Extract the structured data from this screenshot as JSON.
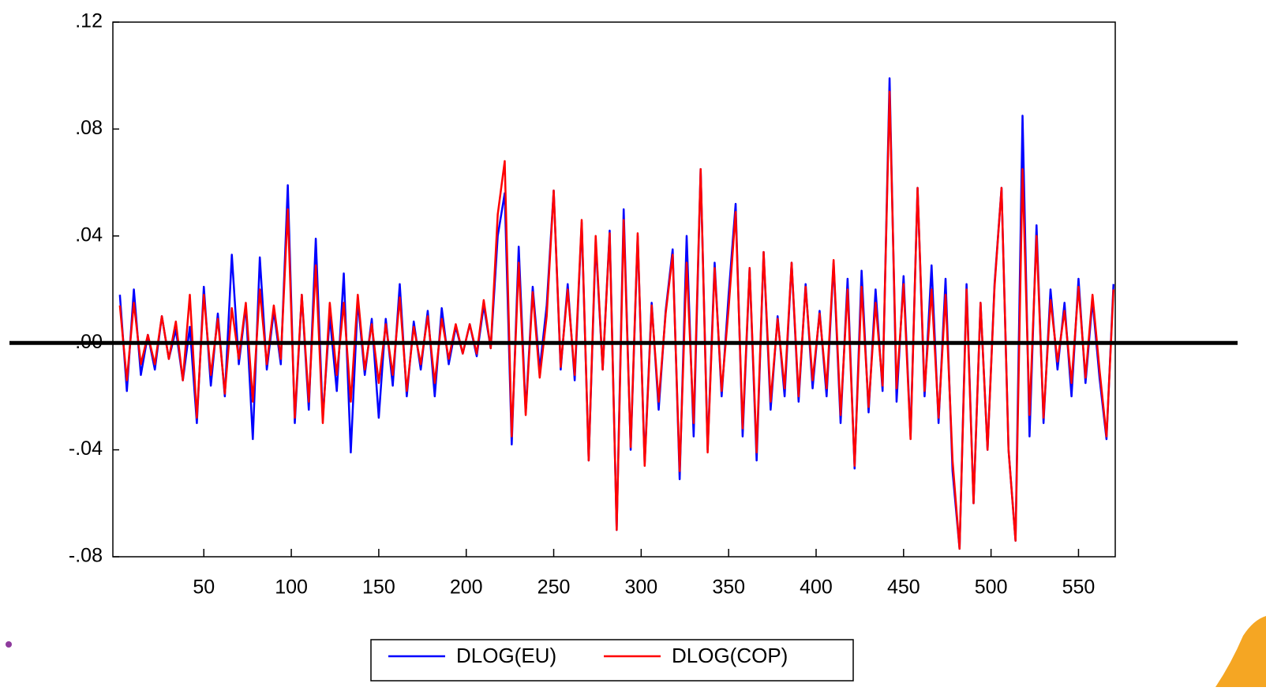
{
  "chart_data": {
    "type": "line",
    "x": [
      2,
      6,
      10,
      14,
      18,
      22,
      26,
      30,
      34,
      38,
      42,
      46,
      50,
      54,
      58,
      62,
      66,
      70,
      74,
      78,
      82,
      86,
      90,
      94,
      98,
      102,
      106,
      110,
      114,
      118,
      122,
      126,
      130,
      134,
      138,
      142,
      146,
      150,
      154,
      158,
      162,
      166,
      170,
      174,
      178,
      182,
      186,
      190,
      194,
      198,
      202,
      206,
      210,
      214,
      218,
      222,
      226,
      230,
      234,
      238,
      242,
      246,
      250,
      254,
      258,
      262,
      266,
      270,
      274,
      278,
      282,
      286,
      290,
      294,
      298,
      302,
      306,
      310,
      314,
      318,
      322,
      326,
      330,
      334,
      338,
      342,
      346,
      350,
      354,
      358,
      362,
      366,
      370,
      374,
      378,
      382,
      386,
      390,
      394,
      398,
      402,
      406,
      410,
      414,
      418,
      422,
      426,
      430,
      434,
      438,
      442,
      446,
      450,
      454,
      458,
      462,
      466,
      470,
      474,
      478,
      482,
      486,
      490,
      494,
      498,
      502,
      506,
      510,
      514,
      518,
      522,
      526,
      530,
      534,
      538,
      542,
      546,
      550,
      554,
      558,
      562,
      566,
      570
    ],
    "series": [
      {
        "name": "DLOG(EU)",
        "color": "#0000ff",
        "values": [
          0.018,
          -0.018,
          0.02,
          -0.012,
          0.003,
          -0.01,
          0.01,
          -0.006,
          0.005,
          -0.014,
          0.006,
          -0.03,
          0.021,
          -0.016,
          0.011,
          -0.02,
          0.033,
          -0.008,
          0.014,
          -0.036,
          0.032,
          -0.01,
          0.012,
          -0.008,
          0.059,
          -0.03,
          0.018,
          -0.025,
          0.039,
          -0.028,
          0.01,
          -0.018,
          0.026,
          -0.041,
          0.016,
          -0.012,
          0.009,
          -0.028,
          0.009,
          -0.016,
          0.022,
          -0.02,
          0.008,
          -0.01,
          0.012,
          -0.02,
          0.013,
          -0.008,
          0.006,
          -0.004,
          0.007,
          -0.005,
          0.014,
          -0.002,
          0.04,
          0.056,
          -0.038,
          0.036,
          -0.026,
          0.021,
          -0.01,
          0.014,
          0.057,
          -0.01,
          0.022,
          -0.014,
          0.045,
          -0.044,
          0.038,
          -0.01,
          0.042,
          -0.07,
          0.05,
          -0.04,
          0.04,
          -0.045,
          0.015,
          -0.025,
          0.012,
          0.035,
          -0.051,
          0.04,
          -0.035,
          0.065,
          -0.04,
          0.03,
          -0.02,
          0.018,
          0.052,
          -0.035,
          0.028,
          -0.044,
          0.034,
          -0.025,
          0.01,
          -0.02,
          0.03,
          -0.022,
          0.022,
          -0.017,
          0.012,
          -0.02,
          0.03,
          -0.03,
          0.024,
          -0.047,
          0.027,
          -0.026,
          0.02,
          -0.018,
          0.099,
          -0.022,
          0.025,
          -0.035,
          0.058,
          -0.02,
          0.029,
          -0.03,
          0.024,
          -0.048,
          -0.077,
          0.022,
          -0.06,
          0.015,
          -0.04,
          0.022,
          0.058,
          -0.04,
          -0.074,
          0.085,
          -0.035,
          0.044,
          -0.03,
          0.02,
          -0.01,
          0.015,
          -0.02,
          0.024,
          -0.015,
          0.016,
          -0.013,
          -0.036,
          0.022
        ]
      },
      {
        "name": "DLOG(COP)",
        "color": "#ff0000",
        "values": [
          0.014,
          -0.014,
          0.015,
          -0.008,
          0.003,
          -0.008,
          0.01,
          -0.006,
          0.008,
          -0.014,
          0.018,
          -0.028,
          0.018,
          -0.012,
          0.009,
          -0.019,
          0.013,
          -0.006,
          0.015,
          -0.022,
          0.02,
          -0.008,
          0.014,
          -0.006,
          0.05,
          -0.028,
          0.018,
          -0.022,
          0.029,
          -0.03,
          0.015,
          -0.012,
          0.015,
          -0.022,
          0.018,
          -0.01,
          0.007,
          -0.015,
          0.007,
          -0.012,
          0.017,
          -0.018,
          0.006,
          -0.008,
          0.01,
          -0.015,
          0.009,
          -0.006,
          0.007,
          -0.004,
          0.007,
          -0.004,
          0.016,
          -0.002,
          0.048,
          0.068,
          -0.035,
          0.03,
          -0.027,
          0.019,
          -0.013,
          0.01,
          0.057,
          -0.009,
          0.02,
          -0.012,
          0.046,
          -0.044,
          0.04,
          -0.01,
          0.041,
          -0.07,
          0.046,
          -0.039,
          0.041,
          -0.046,
          0.014,
          -0.022,
          0.011,
          0.033,
          -0.048,
          0.03,
          -0.03,
          0.065,
          -0.041,
          0.028,
          -0.018,
          0.013,
          0.049,
          -0.032,
          0.028,
          -0.041,
          0.034,
          -0.022,
          0.009,
          -0.017,
          0.03,
          -0.02,
          0.021,
          -0.014,
          0.011,
          -0.017,
          0.031,
          -0.027,
          0.02,
          -0.046,
          0.021,
          -0.024,
          0.015,
          -0.016,
          0.094,
          -0.017,
          0.022,
          -0.036,
          0.058,
          -0.018,
          0.02,
          -0.028,
          0.018,
          -0.044,
          -0.077,
          0.02,
          -0.06,
          0.015,
          -0.04,
          0.021,
          0.058,
          -0.04,
          -0.074,
          0.065,
          -0.027,
          0.04,
          -0.028,
          0.016,
          -0.007,
          0.012,
          -0.015,
          0.021,
          -0.013,
          0.018,
          -0.01,
          -0.035,
          0.02
        ]
      }
    ],
    "xlim": [
      -2,
      571
    ],
    "xticks": [
      50,
      100,
      150,
      200,
      250,
      300,
      350,
      400,
      450,
      500,
      550
    ],
    "ylim": [
      -0.08,
      0.12
    ],
    "yticks": [
      {
        "value": -0.08,
        "label": "-.08"
      },
      {
        "value": -0.04,
        "label": "-.04"
      },
      {
        "value": 0,
        "label": ".00"
      },
      {
        "value": 0.04,
        "label": ".04"
      },
      {
        "value": 0.08,
        "label": ".08"
      },
      {
        "value": 0.12,
        "label": ".12"
      }
    ],
    "legend": "bottom"
  }
}
